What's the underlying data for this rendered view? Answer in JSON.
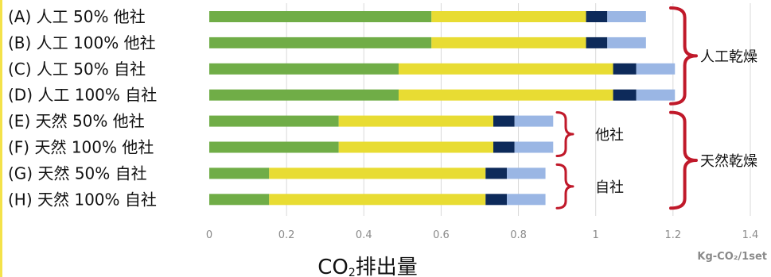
{
  "chart_data": {
    "type": "bar",
    "orientation": "horizontal",
    "stacked": true,
    "categories": [
      "(A) 人工 50% 他社",
      "(B) 人工 100% 他社",
      "(C) 人工 50% 自社",
      "(D) 人工 100% 自社",
      "(E) 天然 50% 他社",
      "(F) 天然 100% 他社",
      "(G) 天然 50% 自社",
      "(H) 天然 100% 自社"
    ],
    "series": [
      {
        "color": "#70ad47",
        "values": [
          0.575,
          0.575,
          0.49,
          0.49,
          0.335,
          0.335,
          0.155,
          0.155
        ]
      },
      {
        "color": "#e8dc33",
        "values": [
          0.4,
          0.4,
          0.555,
          0.555,
          0.4,
          0.4,
          0.56,
          0.56
        ]
      },
      {
        "color": "#0d2a5a",
        "values": [
          0.055,
          0.055,
          0.06,
          0.06,
          0.055,
          0.055,
          0.055,
          0.055
        ]
      },
      {
        "color": "#9ab6e4",
        "values": [
          0.1,
          0.1,
          0.1,
          0.1,
          0.1,
          0.1,
          0.1,
          0.1
        ]
      }
    ],
    "xlim": [
      0,
      1.4
    ],
    "x_ticks": [
      "0",
      "0.2",
      "0.4",
      "0.6",
      "0.8",
      "1",
      "1.2",
      "1.4"
    ],
    "xlabel": "CO₂排出量",
    "unit": "Kg-CO₂/1set",
    "grid": true,
    "brace_groups": [
      {
        "label": "他社",
        "from": 4,
        "to": 5
      },
      {
        "label": "自社",
        "from": 6,
        "to": 7
      },
      {
        "label": "人工乾燥",
        "from": 0,
        "to": 3
      },
      {
        "label": "天然乾燥",
        "from": 4,
        "to": 7
      }
    ]
  }
}
